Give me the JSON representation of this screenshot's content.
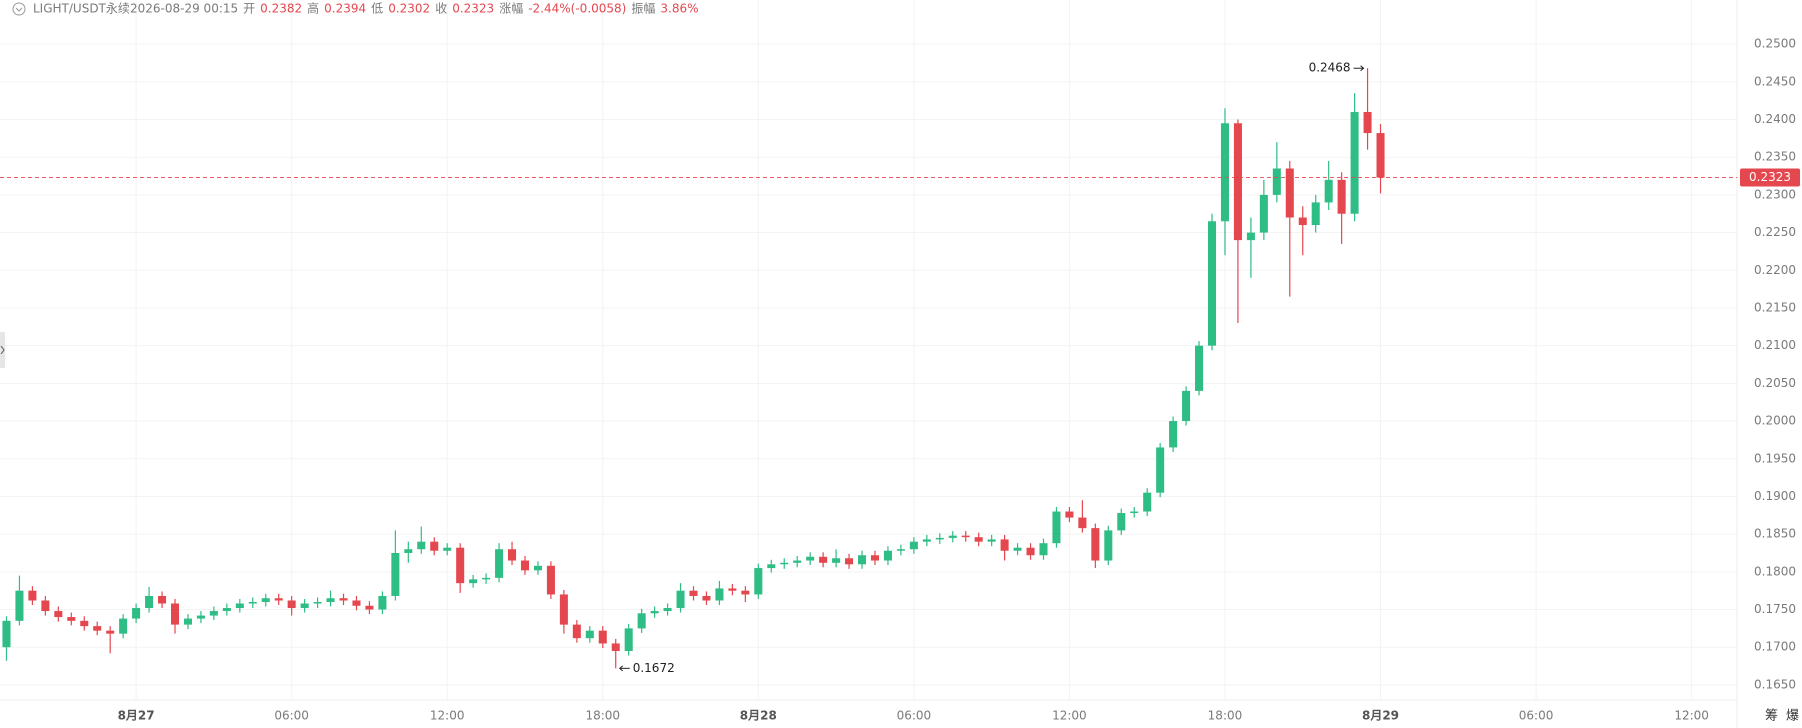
{
  "header": {
    "symbol": "LIGHT/USDT永续",
    "time": "2026-08-29 00:15",
    "open_label": "开",
    "high_label": "高",
    "low_label": "低",
    "close_label": "收",
    "change_label": "涨幅",
    "change": "-2.44%(-0.0058)",
    "amp_label": "振幅",
    "amp": "3.86%"
  },
  "corner_labels": [
    "筹",
    "爆"
  ],
  "chart_data": {
    "type": "candlestick",
    "up_color": "#2ebd85",
    "down_color": "#e5474f",
    "grid": true,
    "open": [
      0.17,
      0.1735,
      0.1775,
      0.1762,
      0.1748,
      0.174,
      0.1735,
      0.1728,
      0.1722,
      0.1718,
      0.1738,
      0.1752,
      0.1768,
      0.1758,
      0.173,
      0.1738,
      0.1742,
      0.1748,
      0.1752,
      0.1758,
      0.176,
      0.1765,
      0.1762,
      0.1752,
      0.1758,
      0.176,
      0.1765,
      0.1762,
      0.1755,
      0.175,
      0.1768,
      0.1825,
      0.183,
      0.184,
      0.1828,
      0.1832,
      0.1785,
      0.179,
      0.1792,
      0.183,
      0.1815,
      0.1802,
      0.1808,
      0.177,
      0.173,
      0.1712,
      0.1722,
      0.1705,
      0.1695,
      0.1725,
      0.1745,
      0.1748,
      0.1752,
      0.1775,
      0.1768,
      0.1762,
      0.1778,
      0.1775,
      0.177,
      0.1805,
      0.181,
      0.1812,
      0.1815,
      0.182,
      0.1812,
      0.1818,
      0.181,
      0.1822,
      0.1815,
      0.1828,
      0.183,
      0.184,
      0.1843,
      0.1845,
      0.1848,
      0.1846,
      0.184,
      0.1843,
      0.1828,
      0.1832,
      0.1822,
      0.1838,
      0.188,
      0.1872,
      0.1858,
      0.1815,
      0.1855,
      0.1878,
      0.188,
      0.1905,
      0.1965,
      0.2,
      0.204,
      0.21,
      0.2265,
      0.2395,
      0.224,
      0.225,
      0.23,
      0.2335,
      0.227,
      0.226,
      0.229,
      0.232,
      0.2275,
      0.241,
      0.2382
    ],
    "high": [
      0.1741,
      0.1795,
      0.1781,
      0.1768,
      0.1754,
      0.1746,
      0.1741,
      0.1734,
      0.1728,
      0.1744,
      0.1758,
      0.178,
      0.1774,
      0.1764,
      0.1744,
      0.1748,
      0.1754,
      0.1758,
      0.1764,
      0.1766,
      0.1771,
      0.1771,
      0.1768,
      0.1764,
      0.1766,
      0.1775,
      0.1771,
      0.1768,
      0.1761,
      0.1774,
      0.1855,
      0.184,
      0.186,
      0.1846,
      0.1838,
      0.1838,
      0.1796,
      0.1798,
      0.1838,
      0.184,
      0.1821,
      0.1814,
      0.1814,
      0.1776,
      0.1736,
      0.1728,
      0.1728,
      0.1711,
      0.1731,
      0.1751,
      0.1754,
      0.1758,
      0.1785,
      0.1781,
      0.1774,
      0.1788,
      0.1784,
      0.1781,
      0.1811,
      0.1816,
      0.1818,
      0.1821,
      0.1826,
      0.1826,
      0.183,
      0.1824,
      0.1828,
      0.1828,
      0.1834,
      0.1836,
      0.1846,
      0.1849,
      0.1851,
      0.1854,
      0.1854,
      0.1852,
      0.1849,
      0.1849,
      0.1838,
      0.1838,
      0.1844,
      0.1886,
      0.1886,
      0.1895,
      0.1864,
      0.1861,
      0.1884,
      0.1886,
      0.1911,
      0.1971,
      0.2006,
      0.2046,
      0.2106,
      0.2275,
      0.2415,
      0.24,
      0.227,
      0.232,
      0.237,
      0.2345,
      0.2285,
      0.23,
      0.2345,
      0.233,
      0.2435,
      0.2468,
      0.2394
    ],
    "low": [
      0.1682,
      0.1729,
      0.1756,
      0.1742,
      0.1734,
      0.1729,
      0.1722,
      0.1716,
      0.1692,
      0.1712,
      0.1732,
      0.1746,
      0.1752,
      0.1718,
      0.1724,
      0.1732,
      0.1736,
      0.1742,
      0.1746,
      0.1752,
      0.1754,
      0.1756,
      0.1742,
      0.1746,
      0.1752,
      0.1754,
      0.1756,
      0.1749,
      0.1744,
      0.1744,
      0.1762,
      0.1812,
      0.1824,
      0.1822,
      0.1822,
      0.1772,
      0.1779,
      0.1784,
      0.1786,
      0.1809,
      0.1796,
      0.1796,
      0.1764,
      0.1718,
      0.1706,
      0.1706,
      0.1699,
      0.1672,
      0.1689,
      0.1719,
      0.1739,
      0.1742,
      0.1746,
      0.1762,
      0.1756,
      0.1756,
      0.1769,
      0.176,
      0.1764,
      0.1799,
      0.1804,
      0.1806,
      0.1809,
      0.1806,
      0.1806,
      0.1804,
      0.1804,
      0.1809,
      0.1809,
      0.1822,
      0.1824,
      0.1834,
      0.1837,
      0.1839,
      0.184,
      0.1834,
      0.1834,
      0.1815,
      0.1822,
      0.1816,
      0.1816,
      0.1832,
      0.1866,
      0.1852,
      0.1805,
      0.1809,
      0.1849,
      0.1872,
      0.1874,
      0.1899,
      0.1959,
      0.1994,
      0.2034,
      0.2094,
      0.222,
      0.213,
      0.219,
      0.224,
      0.229,
      0.2165,
      0.222,
      0.225,
      0.228,
      0.2235,
      0.2265,
      0.236,
      0.2302
    ],
    "close": [
      0.1735,
      0.1775,
      0.1762,
      0.1748,
      0.174,
      0.1735,
      0.1728,
      0.1722,
      0.1718,
      0.1738,
      0.1752,
      0.1768,
      0.1758,
      0.173,
      0.1738,
      0.1742,
      0.1748,
      0.1752,
      0.1758,
      0.176,
      0.1765,
      0.1762,
      0.1752,
      0.1758,
      0.176,
      0.1765,
      0.1762,
      0.1755,
      0.175,
      0.1768,
      0.1825,
      0.183,
      0.184,
      0.1828,
      0.1832,
      0.1785,
      0.179,
      0.1792,
      0.183,
      0.1815,
      0.1802,
      0.1808,
      0.177,
      0.173,
      0.1712,
      0.1722,
      0.1705,
      0.1695,
      0.1725,
      0.1745,
      0.1748,
      0.1752,
      0.1775,
      0.1768,
      0.1762,
      0.1778,
      0.1775,
      0.177,
      0.1805,
      0.181,
      0.1812,
      0.1815,
      0.182,
      0.1812,
      0.1818,
      0.181,
      0.1822,
      0.1815,
      0.1828,
      0.183,
      0.184,
      0.1843,
      0.1845,
      0.1848,
      0.1846,
      0.184,
      0.1843,
      0.1828,
      0.1832,
      0.1822,
      0.1838,
      0.188,
      0.1872,
      0.1858,
      0.1815,
      0.1855,
      0.1878,
      0.188,
      0.1905,
      0.1965,
      0.2,
      0.204,
      0.21,
      0.2265,
      0.2395,
      0.224,
      0.225,
      0.23,
      0.2335,
      0.227,
      0.226,
      0.229,
      0.232,
      0.2275,
      0.241,
      0.2382,
      0.2323
    ],
    "xlim": [
      -0.5,
      133.5
    ],
    "xticks": [
      {
        "value": 10,
        "label": "8月27"
      },
      {
        "value": 22,
        "label": "06:00"
      },
      {
        "value": 34,
        "label": "12:00"
      },
      {
        "value": 46,
        "label": "18:00"
      },
      {
        "value": 58,
        "label": "8月28"
      },
      {
        "value": 70,
        "label": "06:00"
      },
      {
        "value": 82,
        "label": "12:00"
      },
      {
        "value": 94,
        "label": "18:00"
      },
      {
        "value": 106,
        "label": "8月29"
      },
      {
        "value": 118,
        "label": "06:00"
      },
      {
        "value": 130,
        "label": "12:00"
      }
    ],
    "ylim": [
      0.163,
      0.2528
    ],
    "yticks": [
      {
        "value": 0.165,
        "label": "0.1650"
      },
      {
        "value": 0.17,
        "label": "0.1700"
      },
      {
        "value": 0.175,
        "label": "0.1750"
      },
      {
        "value": 0.18,
        "label": "0.1800"
      },
      {
        "value": 0.185,
        "label": "0.1850"
      },
      {
        "value": 0.19,
        "label": "0.1900"
      },
      {
        "value": 0.195,
        "label": "0.1950"
      },
      {
        "value": 0.2,
        "label": "0.2000"
      },
      {
        "value": 0.205,
        "label": "0.2050"
      },
      {
        "value": 0.21,
        "label": "0.2100"
      },
      {
        "value": 0.215,
        "label": "0.2150"
      },
      {
        "value": 0.22,
        "label": "0.2200"
      },
      {
        "value": 0.225,
        "label": "0.2250"
      },
      {
        "value": 0.23,
        "label": "0.2300"
      },
      {
        "value": 0.235,
        "label": "0.2350"
      },
      {
        "value": 0.24,
        "label": "0.2400"
      },
      {
        "value": 0.245,
        "label": "0.2450"
      },
      {
        "value": 0.25,
        "label": "0.2500"
      }
    ]
  }
}
